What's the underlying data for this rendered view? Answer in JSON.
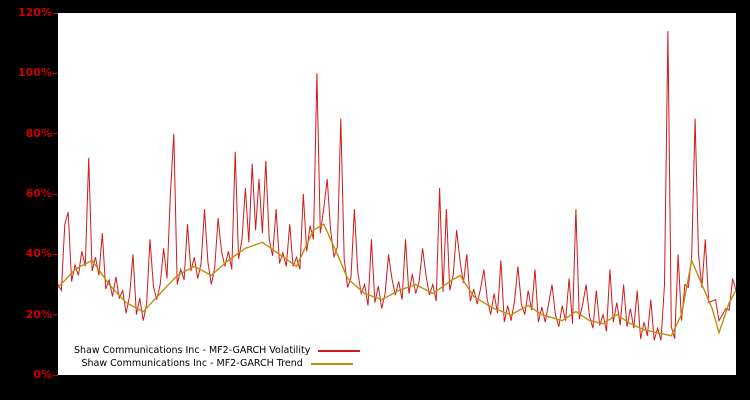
{
  "chart_data": {
    "type": "line",
    "title": "",
    "xlabel": "",
    "ylabel": "",
    "ylim": [
      0,
      120
    ],
    "yticks": [
      0,
      20,
      40,
      60,
      80,
      100,
      120
    ],
    "ytick_suffix": "%",
    "grid": false,
    "legend_position": "bottom-left-inside",
    "background": "#000000",
    "plot_background": "#ffffff",
    "axis_label_color": "#cc0000",
    "series": [
      {
        "name": "Shaw Communications Inc - MF2-GARCH Volatility",
        "color": "#ce1b1b",
        "width": 1,
        "values": [
          30,
          28,
          50,
          54,
          31,
          36.5,
          33,
          41,
          36,
          72,
          34.5,
          39,
          33,
          47,
          28.5,
          31.5,
          26,
          32.5,
          25.5,
          28,
          20.5,
          26,
          40,
          20,
          25.5,
          18,
          23.5,
          45,
          29.5,
          25,
          30,
          42,
          32,
          60,
          80,
          30,
          35,
          31.5,
          50,
          34.5,
          39,
          32,
          37,
          55,
          37.5,
          30,
          35.5,
          52,
          41,
          36,
          41,
          35,
          74,
          38.5,
          45,
          62,
          44,
          70,
          48,
          65,
          47,
          71,
          45,
          39.5,
          55,
          37,
          40.5,
          36,
          50,
          36,
          39,
          35,
          60,
          41,
          49.5,
          45,
          100,
          47,
          55,
          65,
          48,
          39,
          42.5,
          85,
          38.5,
          29,
          32.5,
          55,
          34,
          27,
          30,
          23,
          45,
          24,
          29.5,
          22,
          27,
          40,
          32,
          26.5,
          31,
          25,
          45,
          27,
          33.5,
          27,
          31,
          42,
          33,
          26.5,
          30,
          24.5,
          62,
          27.5,
          55,
          28,
          33,
          48,
          38,
          30.5,
          40,
          24.5,
          28.5,
          23.5,
          28.5,
          35,
          25,
          20,
          27,
          20.5,
          38,
          17.5,
          23,
          18,
          24.5,
          36,
          23.5,
          20,
          28,
          21.5,
          35,
          17.5,
          22.5,
          17.5,
          23.5,
          30,
          20,
          16,
          23,
          18,
          32,
          17,
          55,
          18.5,
          23.5,
          30,
          19.5,
          15.5,
          28,
          16.5,
          20,
          14.5,
          35,
          17.5,
          24,
          16.5,
          30,
          16,
          22,
          15.5,
          28,
          12,
          17.5,
          13,
          25,
          11.5,
          15.5,
          11.5,
          30,
          114,
          16,
          12,
          40,
          18,
          30,
          29,
          39.5,
          85,
          40,
          29,
          45,
          24,
          24.5,
          25,
          18,
          20,
          22,
          21.5,
          32,
          28
        ]
      },
      {
        "name": "Shaw Communications Inc - MF2-GARCH Trend",
        "color": "#c28c10",
        "width": 1.4,
        "values": [
          29,
          30.2,
          31.4,
          32.6,
          33.8,
          35,
          35.6,
          36.2,
          36.8,
          37.4,
          38,
          36.4,
          34.8,
          33.2,
          31.6,
          30,
          28.8,
          27.6,
          26.4,
          25.2,
          24,
          23.4,
          22.8,
          22.2,
          21.6,
          21,
          22.2,
          23.4,
          24.6,
          25.8,
          27,
          28.2,
          29.4,
          30.6,
          31.8,
          33,
          33.6,
          34.2,
          34.8,
          35.4,
          36,
          35.4,
          34.8,
          34.2,
          33.6,
          33,
          34,
          35,
          36,
          37,
          38,
          38.8,
          39.6,
          40.4,
          41.2,
          42,
          42.4,
          42.8,
          43.2,
          43.6,
          44,
          43.2,
          42.4,
          41.6,
          40.8,
          40,
          39.2,
          38.4,
          37.6,
          36.8,
          36,
          38.4,
          40.8,
          43.2,
          45.6,
          48,
          48.7,
          49.3,
          50,
          47.5,
          45,
          42.5,
          40,
          37.3,
          34.7,
          32,
          31,
          30,
          29,
          28,
          27,
          26.6,
          26.2,
          25.8,
          25.4,
          25,
          25.6,
          26.2,
          26.8,
          27.4,
          28,
          28.4,
          28.8,
          29.2,
          29.6,
          30,
          29.4,
          28.8,
          28.2,
          27.6,
          27,
          27.8,
          28.6,
          29.4,
          30.2,
          31,
          31.7,
          32.3,
          33,
          31.3,
          29.5,
          27.8,
          26,
          25.3,
          24.7,
          24,
          23.3,
          22.7,
          22,
          21.6,
          21.2,
          20.8,
          20.4,
          20,
          20.6,
          21.2,
          21.8,
          22.4,
          23,
          22.3,
          21.5,
          20.8,
          20,
          19.7,
          19.3,
          19,
          18.7,
          18.3,
          18,
          18.8,
          19.5,
          20.3,
          21,
          20.3,
          19.5,
          18.8,
          18,
          17.8,
          17.5,
          17.3,
          17,
          17.8,
          18.5,
          19.3,
          20,
          19.3,
          18.5,
          17.8,
          17,
          16.5,
          16,
          15.5,
          15,
          14.8,
          14.5,
          14.3,
          14,
          13.8,
          13.5,
          13.3,
          13,
          15.3,
          17.7,
          20,
          26,
          32,
          38,
          35.3,
          32.7,
          30,
          27.3,
          24.7,
          22,
          18,
          14,
          17.3,
          20.7,
          24,
          26,
          28
        ]
      }
    ]
  }
}
